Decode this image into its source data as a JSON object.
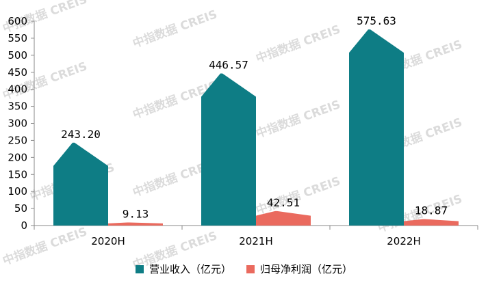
{
  "chart_data": {
    "type": "bar",
    "categories": [
      "2020H",
      "2021H",
      "2022H"
    ],
    "series": [
      {
        "name": "营业收入（亿元）",
        "values": [
          243.2,
          446.57,
          575.63
        ],
        "labels": [
          "243.20",
          "446.57",
          "575.63"
        ],
        "color": "#0e7d85"
      },
      {
        "name": "归母净利润（亿元）",
        "values": [
          9.13,
          42.51,
          18.87
        ],
        "labels": [
          "9.13",
          "42.51",
          "18.87"
        ],
        "color": "#ea6a5e"
      }
    ],
    "ylim": [
      0,
      600
    ],
    "yticks": [
      "0",
      "50",
      "100",
      "150",
      "200",
      "250",
      "300",
      "350",
      "400",
      "450",
      "500",
      "550",
      "600"
    ],
    "grid": false,
    "legend_position": "bottom",
    "bar_shape": "pointed-peak"
  },
  "watermark": "中指数据 CREIS"
}
